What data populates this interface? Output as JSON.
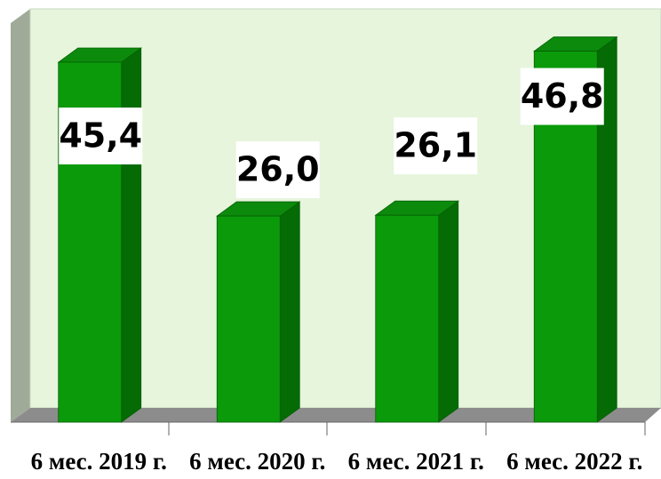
{
  "chart_data": {
    "type": "bar",
    "categories": [
      "6 мес. 2019 г.",
      "6 мес. 2020 г.",
      "6 мес. 2021 г.",
      "6 мес. 2022 г."
    ],
    "values": [
      45.4,
      26.0,
      26.1,
      46.8
    ],
    "value_labels": [
      "45,4",
      "26,0",
      "26,1",
      "46,8"
    ],
    "color": "#0a9a0a",
    "ylim": [
      0,
      50
    ]
  }
}
